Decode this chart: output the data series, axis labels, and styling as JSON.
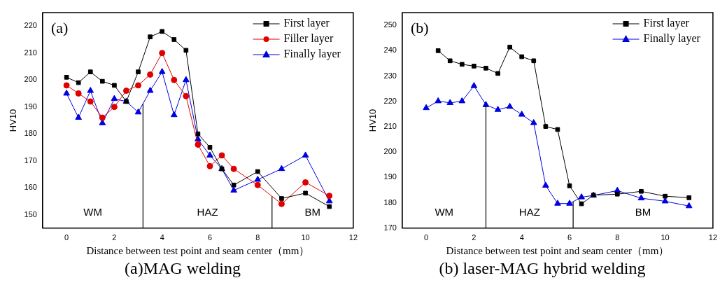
{
  "chart_data": [
    {
      "type": "line",
      "title": "(a)MAG welding",
      "xlabel": "Distance between test point and seam center（mm）",
      "ylabel": "HV10",
      "x": [
        0,
        0.5,
        1,
        1.5,
        2,
        2.5,
        3,
        3.5,
        4,
        4.5,
        5,
        5.5,
        6,
        6.5,
        7,
        8,
        9,
        10,
        11
      ],
      "series": [
        {
          "name": "First layer",
          "color": "#000000",
          "marker": "square",
          "values": [
            201,
            199,
            203,
            199.5,
            198,
            192,
            203,
            216,
            218,
            215,
            211,
            180,
            175,
            167,
            161,
            166,
            156,
            158,
            153
          ]
        },
        {
          "name": "Filler layer",
          "color": "#e00000",
          "marker": "circle",
          "values": [
            198,
            195,
            192,
            186,
            190,
            196,
            198,
            202,
            210,
            200,
            194,
            176,
            168,
            172,
            167,
            161,
            154,
            162,
            157
          ]
        },
        {
          "name": "Finally layer",
          "color": "#0000e0",
          "marker": "triangle",
          "values": [
            195,
            186,
            196,
            184,
            193,
            192,
            188,
            196,
            203,
            187,
            200,
            178,
            172,
            167,
            159,
            163,
            167,
            172,
            155
          ]
        }
      ],
      "xlim": [
        -1,
        12
      ],
      "xticks": [
        0,
        2,
        4,
        6,
        8,
        10,
        12
      ],
      "ylim": [
        145,
        225
      ],
      "yticks": [
        150,
        160,
        170,
        180,
        190,
        200,
        210,
        220
      ],
      "ref_lines": [
        {
          "axis": "x",
          "value": 3.2,
          "color": "#000000"
        },
        {
          "axis": "x",
          "value": 8.6,
          "color": "#000000"
        }
      ],
      "annotations": [
        "(a)",
        "WM",
        "HAZ",
        "BM"
      ],
      "legend": "top right",
      "grid": false
    },
    {
      "type": "line",
      "title": "(b) laser-MAG hybrid welding",
      "xlabel": "Distance between test point and seam center（mm）",
      "ylabel": "HV10",
      "x": [
        0,
        0.5,
        1,
        1.5,
        2,
        2.5,
        3,
        3.5,
        4,
        4.5,
        5,
        5.5,
        6,
        6.5,
        7,
        8,
        9,
        10,
        11
      ],
      "series": [
        {
          "name": "First layer",
          "color": "#000000",
          "marker": "square",
          "values": [
            null,
            240,
            236,
            234.6,
            233.9,
            233.1,
            231,
            241.4,
            237.6,
            236,
            210.1,
            208.9,
            186.7,
            179.6,
            183,
            183.4,
            184.5,
            182.6,
            182
          ]
        },
        {
          "name": "Finally layer",
          "color": "#0000e0",
          "marker": "triangle",
          "values": [
            217.4,
            220.1,
            219.4,
            220.1,
            226.1,
            218.6,
            216.7,
            217.9,
            214.8,
            211.5,
            186.8,
            179.7,
            179.7,
            182.2,
            182.9,
            184.8,
            181.8,
            180.6,
            178.7
          ]
        }
      ],
      "xlim": [
        -1,
        12
      ],
      "xticks": [
        0,
        2,
        4,
        6,
        8,
        10,
        12
      ],
      "ylim": [
        170,
        255
      ],
      "yticks": [
        170,
        180,
        190,
        200,
        210,
        220,
        230,
        240,
        250
      ],
      "ref_lines": [
        {
          "axis": "x",
          "value": 2.5,
          "color": "#000000"
        },
        {
          "axis": "x",
          "value": 6.15,
          "color": "#000000"
        }
      ],
      "annotations": [
        "(b)",
        "WM",
        "HAZ",
        "BM"
      ],
      "legend": "top right",
      "grid": false
    }
  ]
}
